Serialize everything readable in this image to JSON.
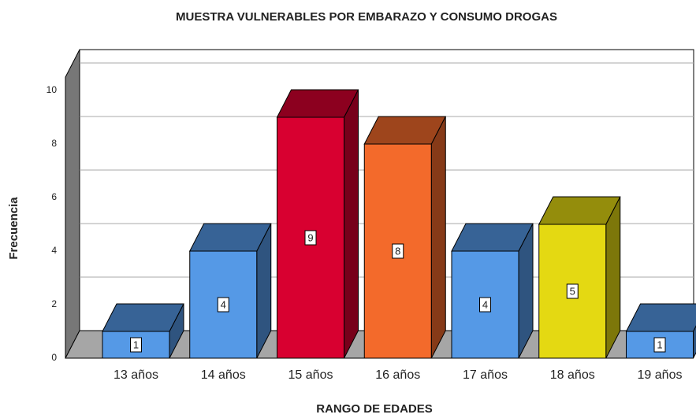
{
  "chart_data": {
    "type": "bar3d",
    "title": "MUESTRA VULNERABLES POR EMBARAZO Y CONSUMO DROGAS",
    "x_label": "RANGO DE EDADES",
    "y_label": "Frecuencia",
    "categories": [
      "13 años",
      "14 años",
      "15 años",
      "16 años",
      "17 años",
      "18 años",
      "19 años"
    ],
    "values": [
      1,
      4,
      9,
      8,
      4,
      5,
      1
    ],
    "colors": [
      "#5599e6",
      "#5599e6",
      "#d80030",
      "#f36a2b",
      "#5599e6",
      "#e4d912",
      "#5599e6"
    ],
    "ylim": [
      0,
      10.5
    ],
    "yticks": [
      0,
      2,
      4,
      6,
      8,
      10
    ],
    "grid": true
  }
}
